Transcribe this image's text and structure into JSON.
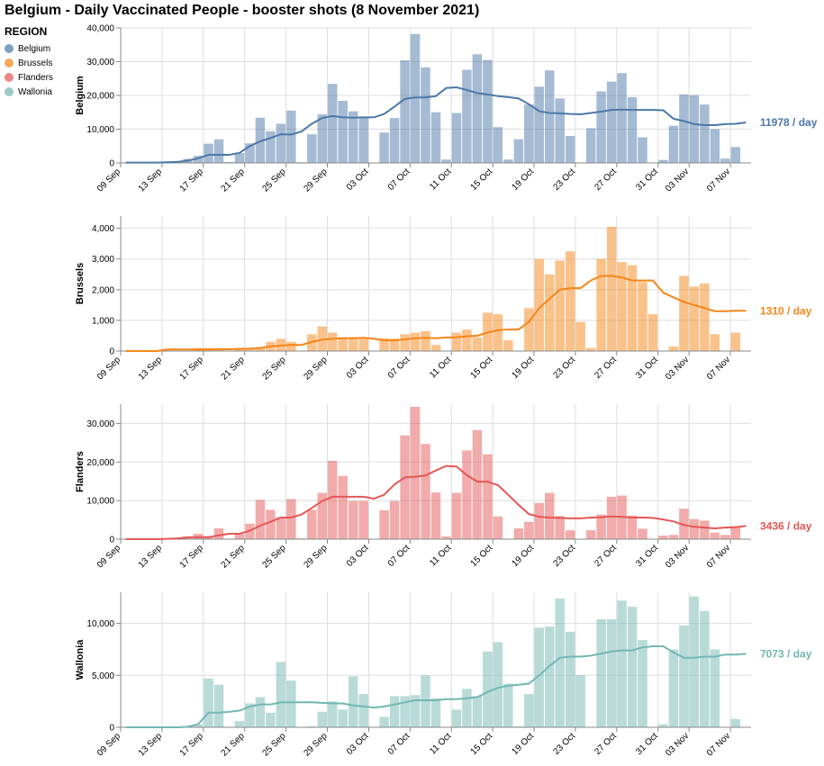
{
  "title": "Belgium - Daily Vaccinated People - booster shots (8 November 2021)",
  "legend": {
    "title": "REGION",
    "items": [
      {
        "label": "Belgium",
        "color": "#4c78a8"
      },
      {
        "label": "Brussels",
        "color": "#f58518"
      },
      {
        "label": "Flanders",
        "color": "#e45756"
      },
      {
        "label": "Wallonia",
        "color": "#72b7b2"
      }
    ]
  },
  "chart_data": {
    "type": "bar",
    "x_ticks": [
      "09 Sep",
      "13 Sep",
      "17 Sep",
      "21 Sep",
      "25 Sep",
      "29 Sep",
      "03 Oct",
      "07 Oct",
      "11 Oct",
      "15 Oct",
      "19 Oct",
      "23 Oct",
      "27 Oct",
      "31 Oct",
      "03 Nov",
      "07 Nov"
    ],
    "x": [
      "2021-09-09",
      "2021-09-10",
      "2021-09-11",
      "2021-09-12",
      "2021-09-13",
      "2021-09-14",
      "2021-09-15",
      "2021-09-16",
      "2021-09-17",
      "2021-09-18",
      "2021-09-19",
      "2021-09-20",
      "2021-09-21",
      "2021-09-22",
      "2021-09-23",
      "2021-09-24",
      "2021-09-25",
      "2021-09-26",
      "2021-09-27",
      "2021-09-28",
      "2021-09-29",
      "2021-09-30",
      "2021-10-01",
      "2021-10-02",
      "2021-10-03",
      "2021-10-04",
      "2021-10-05",
      "2021-10-06",
      "2021-10-07",
      "2021-10-08",
      "2021-10-09",
      "2021-10-10",
      "2021-10-11",
      "2021-10-12",
      "2021-10-13",
      "2021-10-14",
      "2021-10-15",
      "2021-10-16",
      "2021-10-17",
      "2021-10-18",
      "2021-10-19",
      "2021-10-20",
      "2021-10-21",
      "2021-10-22",
      "2021-10-23",
      "2021-10-24",
      "2021-10-25",
      "2021-10-26",
      "2021-10-27",
      "2021-10-28",
      "2021-10-29",
      "2021-10-30",
      "2021-10-31",
      "2021-11-01",
      "2021-11-02",
      "2021-11-03",
      "2021-11-04",
      "2021-11-05",
      "2021-11-06",
      "2021-11-07",
      "2021-11-08"
    ],
    "series": [
      {
        "name": "Belgium",
        "ylabel": "Belgium",
        "color": "#4c78a8",
        "ymax": 40000,
        "yticks": [
          0,
          10000,
          20000,
          30000,
          40000
        ],
        "yticklabels": [
          "0",
          "10,000",
          "20,000",
          "30,000",
          "40,000"
        ],
        "end_label": "11978 / day",
        "values": [
          100,
          100,
          100,
          200,
          200,
          400,
          1200,
          2100,
          5700,
          7000,
          300,
          2900,
          5800,
          13400,
          9400,
          11600,
          15500,
          200,
          8500,
          14400,
          23400,
          18400,
          15300,
          13300,
          100,
          9000,
          13300,
          30400,
          38200,
          28300,
          15000,
          1000,
          14800,
          27600,
          32200,
          30500,
          10600,
          1000,
          7000,
          17300,
          22600,
          27400,
          19100,
          8000,
          100,
          10300,
          21200,
          24100,
          26600,
          19500,
          7600,
          100,
          900,
          11000,
          20300,
          20100,
          17300,
          10000,
          1300,
          4700,
          0
        ],
        "avg": [
          100,
          100,
          100,
          100,
          200,
          300,
          700,
          1400,
          2400,
          2400,
          2400,
          3000,
          5000,
          6400,
          7400,
          8500,
          8400,
          9300,
          11600,
          13300,
          13900,
          13500,
          13400,
          13500,
          13500,
          14500,
          16700,
          19000,
          19400,
          19400,
          19800,
          22200,
          22400,
          21600,
          20700,
          20300,
          19800,
          19500,
          19100,
          17400,
          15300,
          14800,
          14700,
          14500,
          14400,
          14800,
          15200,
          15700,
          15800,
          15700,
          15700,
          15700,
          15600,
          13100,
          12400,
          11500,
          11200,
          11200,
          11500,
          11600,
          11978
        ]
      },
      {
        "name": "Brussels",
        "ylabel": "Brussels",
        "color": "#f58518",
        "ymax": 4400,
        "yticks": [
          0,
          1000,
          2000,
          3000,
          4000
        ],
        "yticklabels": [
          "0",
          "1,000",
          "2,000",
          "3,000",
          "4,000"
        ],
        "end_label": "1310 / day",
        "values": [
          0,
          0,
          0,
          0,
          0,
          0,
          0,
          100,
          100,
          100,
          0,
          100,
          100,
          100,
          300,
          400,
          300,
          0,
          550,
          800,
          600,
          450,
          450,
          400,
          0,
          420,
          400,
          550,
          600,
          650,
          200,
          0,
          600,
          700,
          450,
          1250,
          1200,
          350,
          0,
          1400,
          3000,
          2500,
          2950,
          3250,
          950,
          100,
          3000,
          4050,
          2900,
          2800,
          2250,
          1200,
          0,
          150,
          2450,
          2100,
          2200,
          550,
          0,
          600,
          0
        ],
        "avg": [
          0,
          0,
          0,
          0,
          50,
          50,
          50,
          50,
          50,
          60,
          60,
          70,
          80,
          100,
          150,
          180,
          200,
          200,
          300,
          370,
          400,
          420,
          420,
          430,
          400,
          350,
          350,
          380,
          420,
          430,
          420,
          440,
          450,
          480,
          500,
          600,
          680,
          700,
          700,
          950,
          1400,
          1700,
          2000,
          2050,
          2050,
          2300,
          2450,
          2450,
          2400,
          2300,
          2300,
          2300,
          1900,
          1750,
          1600,
          1500,
          1400,
          1300,
          1300,
          1310,
          1310
        ]
      },
      {
        "name": "Flanders",
        "ylabel": "Flanders",
        "color": "#e45756",
        "ymax": 35000,
        "yticks": [
          0,
          10000,
          20000,
          30000
        ],
        "yticklabels": [
          "0",
          "10,000",
          "20,000",
          "30,000"
        ],
        "end_label": "3436 / day",
        "values": [
          0,
          0,
          0,
          0,
          100,
          200,
          700,
          1400,
          800,
          2800,
          100,
          1300,
          4000,
          10200,
          7600,
          5700,
          10400,
          200,
          7600,
          12000,
          20300,
          16400,
          9900,
          9900,
          100,
          7500,
          9900,
          26900,
          34300,
          24700,
          12100,
          700,
          12000,
          23000,
          28300,
          22000,
          5900,
          100,
          2800,
          4500,
          9400,
          12000,
          6000,
          2300,
          100,
          2300,
          6400,
          11000,
          11300,
          6100,
          2700,
          100,
          900,
          1100,
          7900,
          5200,
          4800,
          1700,
          1100,
          3400,
          0
        ],
        "avg": [
          0,
          0,
          0,
          0,
          100,
          200,
          500,
          500,
          500,
          1000,
          1400,
          1400,
          2200,
          3500,
          4500,
          5600,
          5600,
          6400,
          8100,
          9900,
          11000,
          11000,
          11000,
          11000,
          10500,
          11500,
          14200,
          16000,
          16200,
          16500,
          17800,
          19000,
          18800,
          16600,
          14900,
          14900,
          14000,
          11500,
          8900,
          6500,
          5800,
          5600,
          5500,
          5400,
          5400,
          5600,
          5700,
          5900,
          5800,
          5600,
          5600,
          5500,
          5100,
          4600,
          3700,
          3200,
          3000,
          2800,
          3000,
          3100,
          3436
        ]
      },
      {
        "name": "Wallonia",
        "ylabel": "Wallonia",
        "color": "#72b7b2",
        "ymax": 13000,
        "yticks": [
          0,
          5000,
          10000
        ],
        "yticklabels": [
          "0",
          "5,000",
          "10,000"
        ],
        "end_label": "7073 / day",
        "values": [
          0,
          0,
          0,
          0,
          0,
          0,
          100,
          300,
          4700,
          4100,
          0,
          600,
          2300,
          2900,
          1400,
          6300,
          4500,
          0,
          100,
          1500,
          2500,
          1700,
          4900,
          3200,
          0,
          1000,
          3000,
          3000,
          3100,
          5000,
          2800,
          0,
          1700,
          3700,
          3000,
          7300,
          8200,
          4200,
          100,
          3200,
          9600,
          9700,
          12400,
          9200,
          5000,
          0,
          10400,
          10400,
          12200,
          11600,
          8400,
          0,
          300,
          7500,
          9800,
          12600,
          11200,
          7500,
          0,
          800,
          0
        ],
        "avg": [
          0,
          0,
          0,
          0,
          0,
          0,
          50,
          300,
          1400,
          1400,
          1500,
          1600,
          2000,
          2200,
          2200,
          2400,
          2400,
          2400,
          2400,
          2350,
          2300,
          2300,
          2100,
          2000,
          1900,
          2000,
          2200,
          2400,
          2600,
          2600,
          2600,
          2700,
          2700,
          2800,
          2900,
          3400,
          3800,
          4000,
          4100,
          4200,
          5000,
          5900,
          6700,
          6800,
          6800,
          6900,
          7100,
          7300,
          7400,
          7400,
          7700,
          7800,
          7800,
          7200,
          6700,
          6700,
          6800,
          6800,
          7000,
          7000,
          7073
        ]
      }
    ]
  }
}
